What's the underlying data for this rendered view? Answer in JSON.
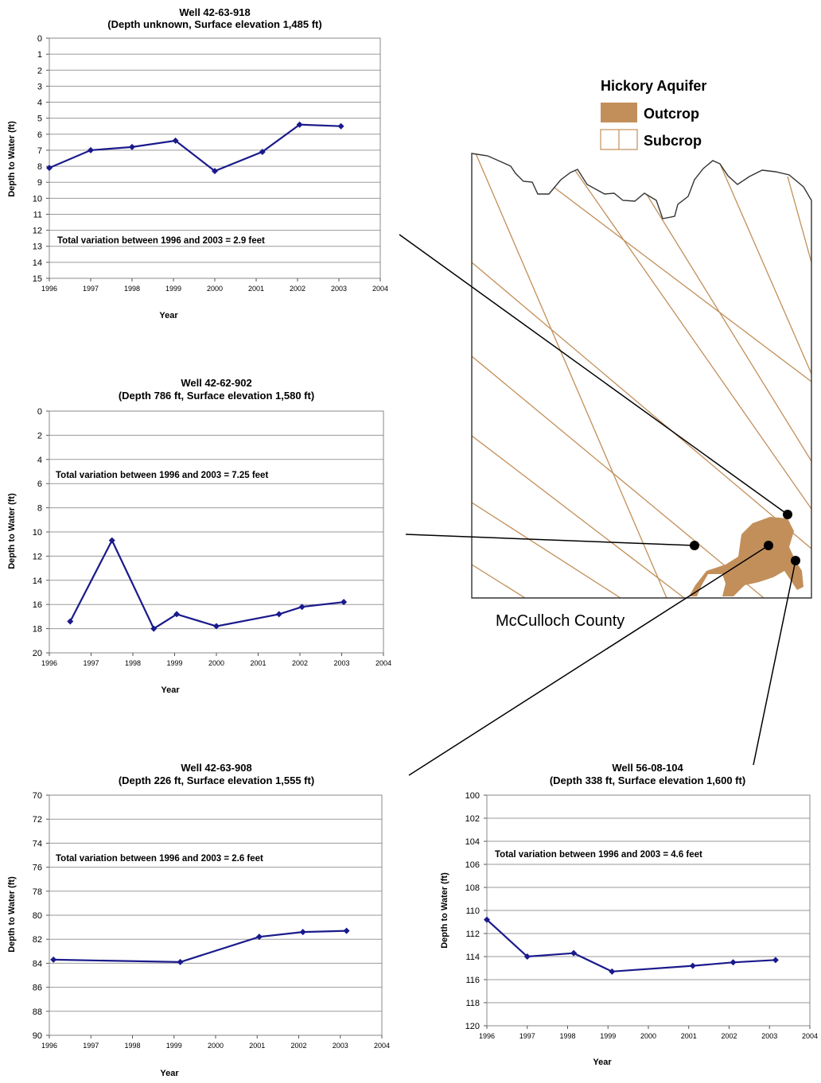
{
  "chart_data": [
    {
      "type": "line",
      "title": "Well 42-63-918",
      "subtitle": "(Depth unknown, Surface elevation  1,485 ft)",
      "xlabel": "Year",
      "ylabel": "Depth to Water (ft)",
      "xlim": [
        1996,
        2004
      ],
      "ylim": [
        0,
        15
      ],
      "y_inverted": true,
      "x_ticks": [
        1996,
        1997,
        1998,
        1999,
        2000,
        2001,
        2002,
        2003,
        2004
      ],
      "y_ticks": [
        0,
        1,
        2,
        3,
        4,
        5,
        6,
        7,
        8,
        9,
        10,
        11,
        12,
        13,
        14,
        15
      ],
      "grid": true,
      "annotation": "Total variation between 1996 and 2003 = 2.9 feet",
      "series": [
        {
          "x": [
            1996.0,
            1997.0,
            1998.0,
            1999.05,
            2000.0,
            2001.15,
            2002.05,
            2003.05
          ],
          "y": [
            8.1,
            7.0,
            6.8,
            6.4,
            8.3,
            7.1,
            5.4,
            5.5
          ]
        }
      ]
    },
    {
      "type": "line",
      "title": "Well 42-62-902",
      "subtitle": "(Depth 786 ft, Surface elevation  1,580 ft)",
      "xlabel": "Year",
      "ylabel": "Depth to Water (ft)",
      "xlim": [
        1996,
        2004
      ],
      "ylim": [
        0,
        20
      ],
      "y_inverted": true,
      "x_ticks": [
        1996,
        1997,
        1998,
        1999,
        2000,
        2001,
        2002,
        2003,
        2004
      ],
      "y_ticks": [
        0,
        2,
        4,
        6,
        8,
        10,
        12,
        14,
        16,
        18,
        20
      ],
      "grid": true,
      "annotation": "Total variation between 1996 and 2003 = 7.25 feet",
      "series": [
        {
          "x": [
            1996.5,
            1997.5,
            1998.5,
            1999.05,
            2000.0,
            2001.5,
            2002.05,
            2003.05
          ],
          "y": [
            17.4,
            10.7,
            18.0,
            16.8,
            17.8,
            16.8,
            16.2,
            15.8
          ]
        }
      ]
    },
    {
      "type": "line",
      "title": "Well 42-63-908",
      "subtitle": "(Depth 226 ft, Surface elevation  1,555 ft)",
      "xlabel": "Year",
      "ylabel": "Depth to Water (ft)",
      "xlim": [
        1996,
        2004
      ],
      "ylim": [
        70,
        90
      ],
      "y_inverted": true,
      "x_ticks": [
        1996,
        1997,
        1998,
        1999,
        2000,
        2001,
        2002,
        2003,
        2004
      ],
      "y_ticks": [
        70,
        72,
        74,
        76,
        78,
        80,
        82,
        84,
        86,
        88,
        90
      ],
      "grid": true,
      "annotation": "Total variation between 1996 and 2003 = 2.6 feet",
      "series": [
        {
          "x": [
            1996.1,
            1999.15,
            2001.05,
            2002.1,
            2003.15
          ],
          "y": [
            83.7,
            83.9,
            81.8,
            81.4,
            81.3
          ]
        }
      ]
    },
    {
      "type": "line",
      "title": "Well 56-08-104",
      "subtitle": "(Depth 338 ft, Surface elevation  1,600 ft)",
      "xlabel": "Year",
      "ylabel": "Depth to Water (ft)",
      "xlim": [
        1996,
        2004
      ],
      "ylim": [
        100,
        120
      ],
      "y_inverted": true,
      "x_ticks": [
        1996,
        1997,
        1998,
        1999,
        2000,
        2001,
        2002,
        2003,
        2004
      ],
      "y_ticks": [
        100,
        102,
        104,
        106,
        108,
        110,
        112,
        114,
        116,
        118,
        120
      ],
      "grid": true,
      "annotation": "Total variation between 1996 and 2003 = 4.6 feet",
      "series": [
        {
          "x": [
            1996.0,
            1997.0,
            1998.15,
            1999.1,
            2001.1,
            2002.1,
            2003.15
          ],
          "y": [
            110.8,
            114.0,
            113.7,
            115.3,
            114.8,
            114.5,
            114.3
          ]
        }
      ]
    }
  ],
  "map": {
    "legend_title": "Hickory Aquifer",
    "legend_items": [
      {
        "label": "Outcrop",
        "color": "#c28f5a"
      },
      {
        "label": "Subcrop",
        "color": "#c28f5a"
      }
    ],
    "county_label": "McCulloch County"
  },
  "colors": {
    "series": "#1a1a8c",
    "grid": "#9a9a9a",
    "hatch": "#c28f5a",
    "outcrop": "#c28f5a"
  }
}
